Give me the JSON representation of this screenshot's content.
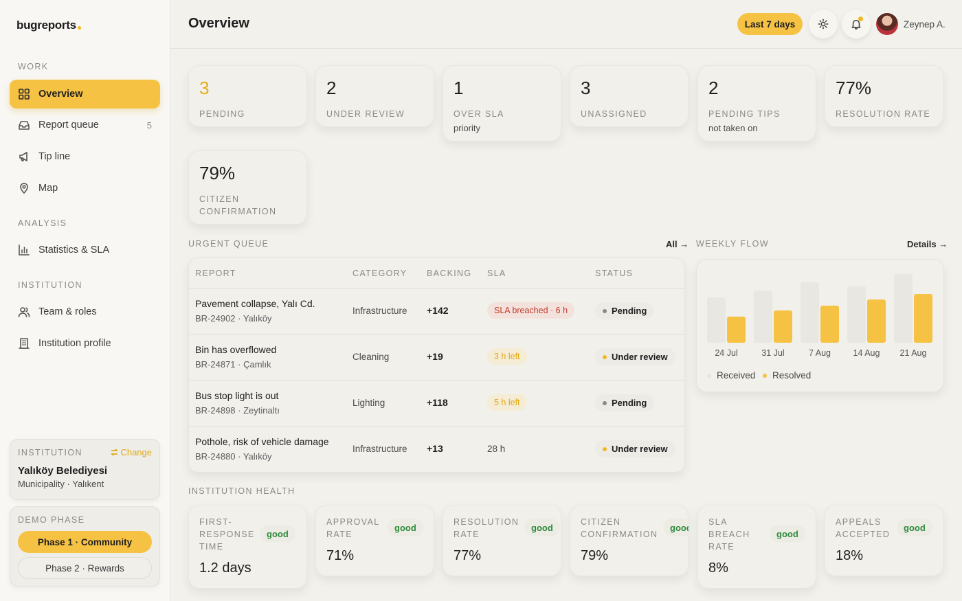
{
  "app": {
    "name": "bugreports"
  },
  "sidebar": {
    "sections": {
      "work": "WORK",
      "analysis": "ANALYSIS",
      "institution": "INSTITUTION"
    },
    "items": [
      {
        "label": "Overview",
        "icon": "grid-icon",
        "active": true
      },
      {
        "label": "Report queue",
        "icon": "inbox-icon",
        "count": "5"
      },
      {
        "label": "Tip line",
        "icon": "megaphone-icon"
      },
      {
        "label": "Map",
        "icon": "map-pin-icon"
      },
      {
        "label": "Statistics & SLA",
        "icon": "bar-chart-icon"
      },
      {
        "label": "Team & roles",
        "icon": "users-icon"
      },
      {
        "label": "Institution profile",
        "icon": "building-icon"
      }
    ],
    "institution_card": {
      "label": "INSTITUTION",
      "change": "Change",
      "name": "Yalıköy Belediyesi",
      "sub": "Municipality · Yalıkent"
    },
    "demo": {
      "label": "DEMO PHASE",
      "phase1": "Phase 1 · Community",
      "phase2": "Phase 2 · Rewards"
    }
  },
  "header": {
    "title": "Overview",
    "range": "Last 7 days",
    "user": "Zeynep A."
  },
  "stats": [
    {
      "value": "3",
      "label": "PENDING",
      "sub": ""
    },
    {
      "value": "2",
      "label": "UNDER REVIEW",
      "sub": ""
    },
    {
      "value": "1",
      "label": "OVER SLA",
      "sub": "priority"
    },
    {
      "value": "3",
      "label": "UNASSIGNED",
      "sub": ""
    },
    {
      "value": "2",
      "label": "PENDING TIPS",
      "sub": "not taken on"
    },
    {
      "value": "77%",
      "label": "RESOLUTION RATE",
      "sub": ""
    },
    {
      "value": "79%",
      "label": "CITIZEN CONFIRMATION",
      "sub": ""
    }
  ],
  "queue": {
    "title": "URGENT QUEUE",
    "link": "All →",
    "columns": [
      "REPORT",
      "CATEGORY",
      "BACKING",
      "SLA",
      "STATUS"
    ],
    "rows": [
      {
        "title": "Pavement collapse, Yalı Cd.",
        "sub": "BR-24902 · Yalıköy",
        "category": "Infrastructure",
        "backing": "+142",
        "sla": "SLA breached · 6 h",
        "status": "Pending"
      },
      {
        "title": "Bin has overflowed",
        "sub": "BR-24871 · Çamlık",
        "category": "Cleaning",
        "backing": "+19",
        "sla": "3 h left",
        "status": "Under review"
      },
      {
        "title": "Bus stop light is out",
        "sub": "BR-24898 · Zeytinaltı",
        "category": "Lighting",
        "backing": "+118",
        "sla": "5 h left",
        "status": "Pending"
      },
      {
        "title": "Pothole, risk of vehicle damage",
        "sub": "BR-24880 · Yalıköy",
        "category": "Infrastructure",
        "backing": "+13",
        "sla": "28 h",
        "status": "Under review"
      }
    ]
  },
  "flow": {
    "title": "WEEKLY FLOW",
    "link": "Details →"
  },
  "chart_data": {
    "type": "bar",
    "categories": [
      "24 Jul",
      "31 Jul",
      "7 Aug",
      "14 Aug",
      "21 Aug"
    ],
    "series": [
      {
        "name": "Received",
        "values": [
          66,
          76,
          88,
          82,
          100
        ],
        "color": "#e9e7e1"
      },
      {
        "name": "Resolved",
        "values": [
          38,
          47,
          54,
          63,
          71
        ],
        "color": "#f6c244"
      }
    ],
    "ylim": [
      0,
      100
    ],
    "legend": "bottom-left",
    "grid": false
  },
  "health": {
    "title": "INSTITUTION HEALTH",
    "items": [
      {
        "label": "FIRST-RESPONSE TIME",
        "badge": "good",
        "value": "1.2 days"
      },
      {
        "label": "APPROVAL RATE",
        "badge": "good",
        "value": "71%"
      },
      {
        "label": "RESOLUTION RATE",
        "badge": "good",
        "value": "77%"
      },
      {
        "label": "CITIZEN CONFIRMATION",
        "badge": "good",
        "value": "79%"
      },
      {
        "label": "SLA BREACH RATE",
        "badge": "good",
        "value": "8%"
      },
      {
        "label": "APPEALS ACCEPTED",
        "badge": "good",
        "value": "18%"
      }
    ]
  },
  "colors": {
    "accent": "#f6c244",
    "accent_text": "#e0a914",
    "danger": "#c0392b",
    "good": "#2e8b3c"
  }
}
